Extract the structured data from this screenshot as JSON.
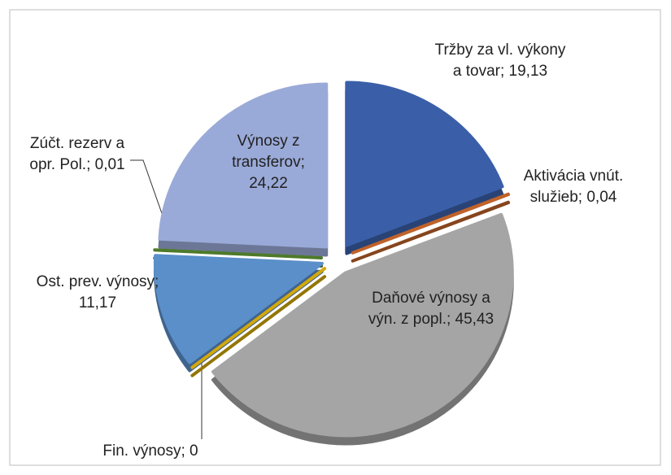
{
  "chart_data": {
    "type": "pie",
    "value_labels": [
      "Tržby za vl. výkony a tovar; 19,13",
      "Aktivácia vnút. služieb; 0,04",
      "Daňové výnosy a výn. z popl.; 45,43",
      "Fin. výnosy; 0",
      "Ost. prev. výnosy; 11,17",
      "Zúčt. rezerv a opr. Pol.; 0,01",
      "Výnosy z transferov; 24,22"
    ],
    "values": [
      19.13,
      0.04,
      45.43,
      0,
      11.17,
      0.01,
      24.22
    ],
    "colors": [
      "#3a5fa8",
      "#c0622a",
      "#a5a5a5",
      "#d4a80a",
      "#5b8fc9",
      "#4e7a2a",
      "#9aaad8"
    ]
  }
}
